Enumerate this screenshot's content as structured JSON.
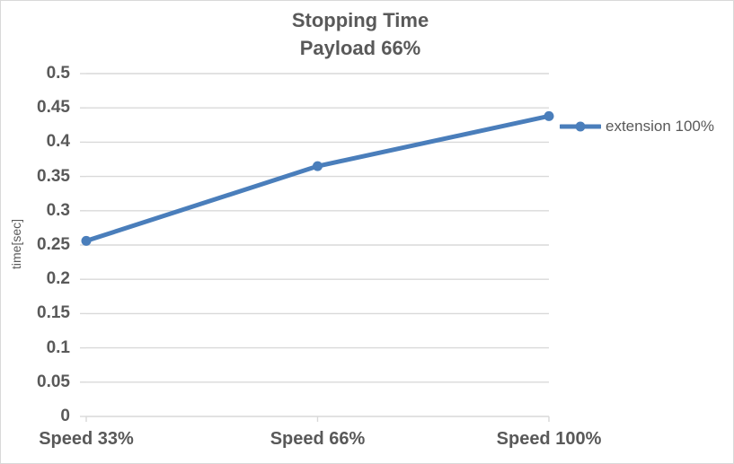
{
  "chart_data": {
    "type": "line",
    "title_lines": [
      "Stopping Time",
      "Payload 66%"
    ],
    "categories": [
      "Speed 33%",
      "Speed 66%",
      "Speed 100%"
    ],
    "series": [
      {
        "name": "extension 100%",
        "color": "#4A7EBB",
        "values": [
          0.256,
          0.365,
          0.438
        ]
      }
    ],
    "xlabel": "",
    "ylabel": "time[sec]",
    "ylim": [
      0,
      0.5
    ],
    "ytick_step": 0.05,
    "ytick_labels": [
      "0",
      "0.05",
      "0.1",
      "0.15",
      "0.2",
      "0.25",
      "0.3",
      "0.35",
      "0.4",
      "0.45",
      "0.5"
    ],
    "grid": true,
    "legend_position": "right of last data point",
    "colors": {
      "text": "#595959",
      "grid": "#D9D9D9",
      "border": "#D9D9D9",
      "background": "#FFFFFF",
      "series1": "#4A7EBB"
    }
  }
}
